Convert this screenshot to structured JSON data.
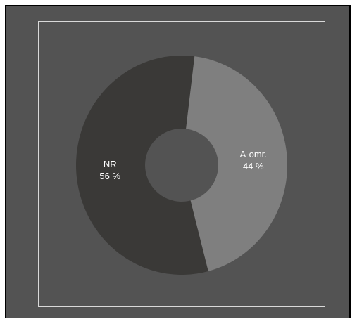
{
  "chart_data": {
    "type": "pie",
    "style": "doughnut",
    "title": "",
    "categories": [
      "NR",
      "A-omr."
    ],
    "values": [
      56,
      44
    ],
    "value_suffix": " %",
    "colors": [
      "#3a3937",
      "#7f7f7f"
    ],
    "hole_color": "#535353",
    "background": "#535353",
    "legend": "none"
  }
}
